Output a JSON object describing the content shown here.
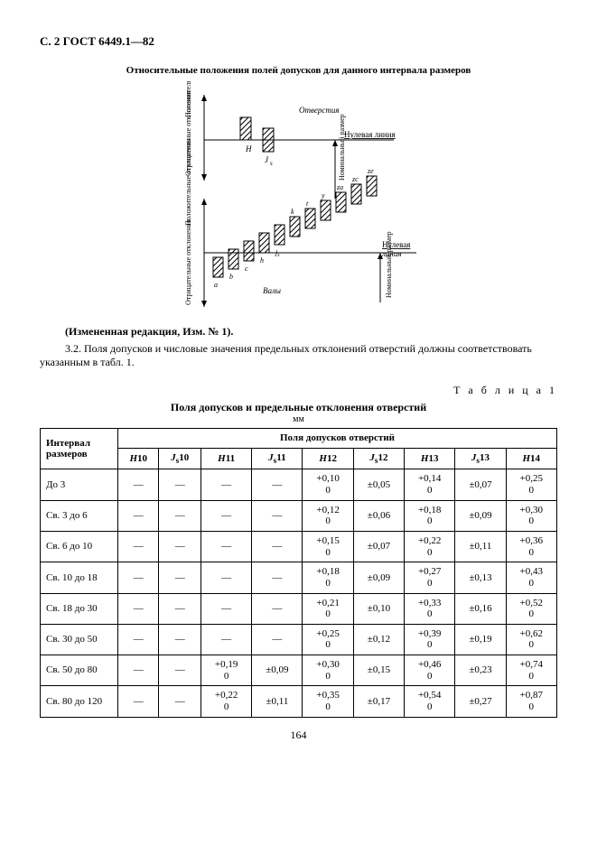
{
  "header": "С. 2 ГОСТ 6449.1—82",
  "figure_title": "Относительные положения полей допусков для данного интервала размеров",
  "figure": {
    "labels": {
      "holes": "Отверстия",
      "shafts": "Валы",
      "zero_line": "Нулевая линия",
      "nominal_size": "Номинальный размер",
      "pos_dev": "Положительные отклонения",
      "neg_dev": "Отрицательные отклонения"
    },
    "letters_holes": [
      "H",
      "J_s"
    ],
    "letters_shafts": [
      "a",
      "b",
      "c",
      "h",
      "j_s",
      "k",
      "t",
      "y",
      "za",
      "zc",
      "ze"
    ],
    "hatch_color": "#000000",
    "bg_color": "#ffffff"
  },
  "note": "(Измененная редакция, Изм. № 1).",
  "para32": "3.2. Поля допусков и числовые значения предельных отклонений отверстий должны соответствовать указанным в табл. 1.",
  "table_label": "Т а б л и ц а  1",
  "table_title": "Поля допусков и предельные отклонения отверстий",
  "table_unit": "мм",
  "table": {
    "rowhead": "Интервал размеров",
    "suphead": "Поля допусков отверстий",
    "columns": [
      "H10",
      "J_s10",
      "H11",
      "J_s11",
      "H12",
      "J_s12",
      "H13",
      "J_s13",
      "H14"
    ],
    "rows": [
      {
        "label": "До 3",
        "cells": [
          "—",
          "—",
          "—",
          "—",
          {
            "t": "+0,10",
            "b": "0"
          },
          "±0,05",
          {
            "t": "+0,14",
            "b": "0"
          },
          "±0,07",
          {
            "t": "+0,25",
            "b": "0"
          }
        ]
      },
      {
        "label": "Св. 3 до 6",
        "cells": [
          "—",
          "—",
          "—",
          "—",
          {
            "t": "+0,12",
            "b": "0"
          },
          "±0,06",
          {
            "t": "+0,18",
            "b": "0"
          },
          "±0,09",
          {
            "t": "+0,30",
            "b": "0"
          }
        ]
      },
      {
        "label": "Св. 6 до 10",
        "cells": [
          "—",
          "—",
          "—",
          "—",
          {
            "t": "+0,15",
            "b": "0"
          },
          "±0,07",
          {
            "t": "+0,22",
            "b": "0"
          },
          "±0,11",
          {
            "t": "+0,36",
            "b": "0"
          }
        ]
      },
      {
        "label": "Св. 10 до 18",
        "cells": [
          "—",
          "—",
          "—",
          "—",
          {
            "t": "+0,18",
            "b": "0"
          },
          "±0,09",
          {
            "t": "+0,27",
            "b": "0"
          },
          "±0,13",
          {
            "t": "+0,43",
            "b": "0"
          }
        ]
      },
      {
        "label": "Св. 18 до 30",
        "cells": [
          "—",
          "—",
          "—",
          "—",
          {
            "t": "+0,21",
            "b": "0"
          },
          "±0,10",
          {
            "t": "+0,33",
            "b": "0"
          },
          "±0,16",
          {
            "t": "+0,52",
            "b": "0"
          }
        ]
      },
      {
        "label": "Св. 30 до 50",
        "cells": [
          "—",
          "—",
          "—",
          "—",
          {
            "t": "+0,25",
            "b": "0"
          },
          "±0,12",
          {
            "t": "+0,39",
            "b": "0"
          },
          "±0,19",
          {
            "t": "+0,62",
            "b": "0"
          }
        ]
      },
      {
        "label": "Св. 50 до 80",
        "cells": [
          "—",
          "—",
          {
            "t": "+0,19",
            "b": "0"
          },
          "±0,09",
          {
            "t": "+0,30",
            "b": "0"
          },
          "±0,15",
          {
            "t": "+0,46",
            "b": "0"
          },
          "±0,23",
          {
            "t": "+0,74",
            "b": "0"
          }
        ]
      },
      {
        "label": "Св. 80 до 120",
        "cells": [
          "—",
          "—",
          {
            "t": "+0,22",
            "b": "0"
          },
          "±0,11",
          {
            "t": "+0,35",
            "b": "0"
          },
          "±0,17",
          {
            "t": "+0,54",
            "b": "0"
          },
          "±0,27",
          {
            "t": "+0,87",
            "b": "0"
          }
        ]
      }
    ]
  },
  "page_number": "164"
}
